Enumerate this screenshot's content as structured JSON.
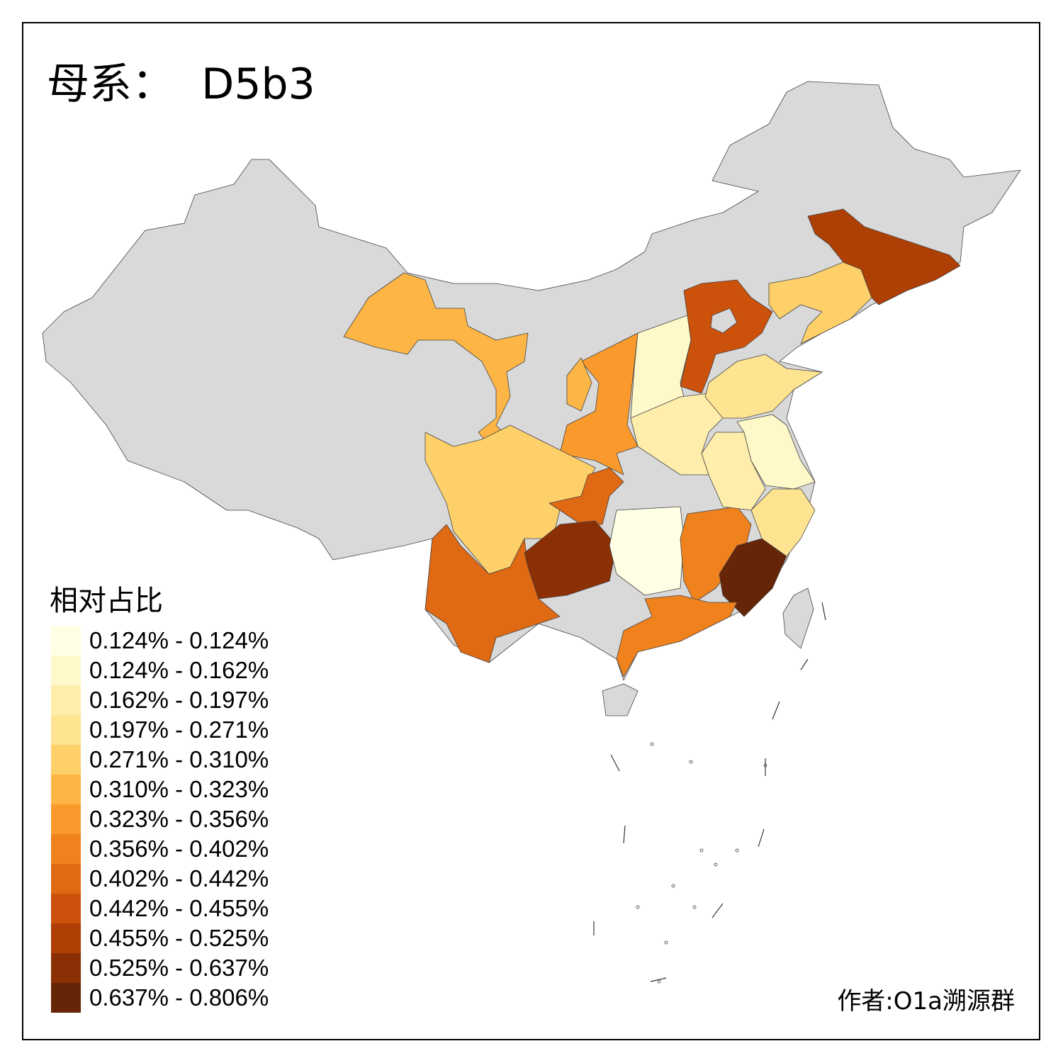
{
  "title": "母系：  D5b3",
  "legend": {
    "title": "相对占比",
    "items": [
      {
        "label": "0.124% - 0.124%",
        "color": "#FFFFE5"
      },
      {
        "label": "0.124% - 0.162%",
        "color": "#FFF8C8"
      },
      {
        "label": "0.162% - 0.197%",
        "color": "#FEEDAB"
      },
      {
        "label": "0.197% - 0.271%",
        "color": "#FEE391"
      },
      {
        "label": "0.271% - 0.310%",
        "color": "#FED06A"
      },
      {
        "label": "0.310% - 0.323%",
        "color": "#FDB546"
      },
      {
        "label": "0.323% - 0.356%",
        "color": "#FB9A2C"
      },
      {
        "label": "0.356% - 0.402%",
        "color": "#F0821E"
      },
      {
        "label": "0.402% - 0.442%",
        "color": "#E06913"
      },
      {
        "label": "0.442% - 0.455%",
        "color": "#CC510A"
      },
      {
        "label": "0.455% - 0.525%",
        "color": "#AE3F05"
      },
      {
        "label": "0.525% - 0.637%",
        "color": "#8B2F05"
      },
      {
        "label": "0.637% - 0.806%",
        "color": "#662506"
      }
    ]
  },
  "no_data_color": "#D9D9D9",
  "credit": "作者:O1a溯源群"
}
